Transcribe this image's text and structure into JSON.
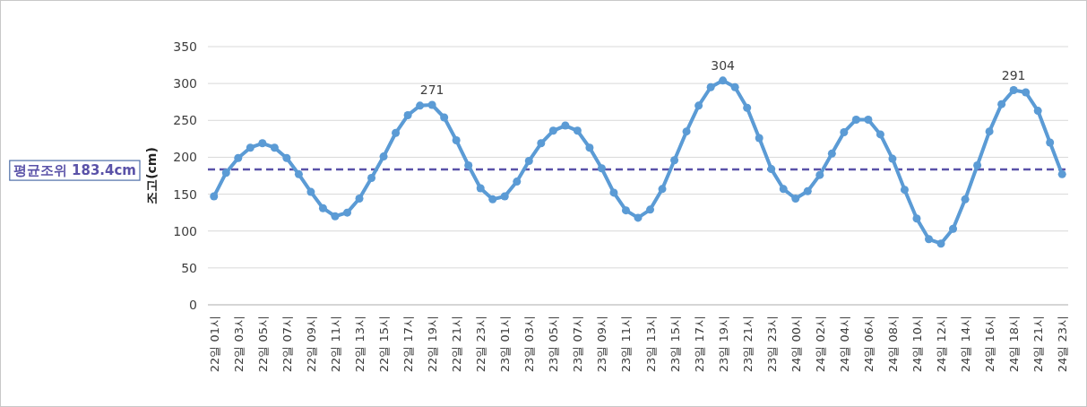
{
  "chart_data": {
    "type": "line",
    "ylabel": "조고(cm)",
    "categories": [
      "22일 01시",
      null,
      "22일 03시",
      null,
      "22일 05시",
      null,
      "22일 07시",
      null,
      "22일 09시",
      null,
      "22일 11시",
      null,
      "22일 13시",
      null,
      "22일 15시",
      null,
      "22일 17시",
      null,
      "22일 19시",
      null,
      "22일 21시",
      null,
      "22일 23시",
      null,
      "23일 01시",
      null,
      "23일 03시",
      null,
      "23일 05시",
      null,
      "23일 07시",
      null,
      "23일 09시",
      null,
      "23일 11시",
      null,
      "23일 13시",
      null,
      "23일 15시",
      null,
      "23일 17시",
      null,
      "23일 19시",
      null,
      "23일 21시",
      null,
      "23일 23시",
      null,
      "24일 00시",
      null,
      "24일 02시",
      null,
      "24일 04시",
      null,
      "24일 06시",
      null,
      "24일 08시",
      null,
      "24일 10시",
      null,
      "24일 12시",
      null,
      "24일 14시",
      null,
      "24일 16시",
      null,
      "24일 18시",
      null,
      "24일 21시",
      null,
      "24일 23시"
    ],
    "series": [
      {
        "color": "#5b9bd5",
        "values": [
          147,
          179,
          199,
          213,
          219,
          213,
          199,
          177,
          153,
          131,
          120,
          125,
          144,
          172,
          201,
          233,
          257,
          270,
          271,
          254,
          223,
          189,
          158,
          143,
          147,
          167,
          195,
          219,
          236,
          243,
          236,
          213,
          185,
          152,
          128,
          118,
          129,
          157,
          196,
          235,
          270,
          295,
          304,
          295,
          267,
          226,
          184,
          157,
          144,
          154,
          176,
          205,
          234,
          251,
          251,
          231,
          198,
          156,
          117,
          89,
          83,
          103,
          143,
          189,
          235,
          272,
          291,
          288,
          263,
          220,
          177
        ],
        "value_labels": [
          null,
          null,
          null,
          null,
          null,
          null,
          null,
          null,
          null,
          null,
          null,
          null,
          null,
          null,
          null,
          null,
          null,
          null,
          "271",
          null,
          null,
          null,
          null,
          null,
          null,
          null,
          null,
          null,
          null,
          null,
          null,
          null,
          null,
          null,
          null,
          null,
          null,
          null,
          null,
          null,
          null,
          null,
          "304",
          null,
          null,
          null,
          null,
          null,
          null,
          null,
          null,
          null,
          null,
          null,
          null,
          null,
          null,
          null,
          null,
          null,
          null,
          null,
          null,
          null,
          null,
          null,
          "291",
          null,
          null,
          null,
          null
        ]
      }
    ],
    "ylim": [
      0,
      350
    ],
    "yticks": [
      0,
      50,
      100,
      150,
      200,
      250,
      300,
      350
    ],
    "grid": "y",
    "marker": "circle",
    "line_style": "solid",
    "ref_lines": [
      {
        "axis": "y",
        "value": 183.4,
        "label": "평균조위 183.4cm",
        "color": "#5a52a8",
        "line_style": "dashed"
      }
    ]
  }
}
